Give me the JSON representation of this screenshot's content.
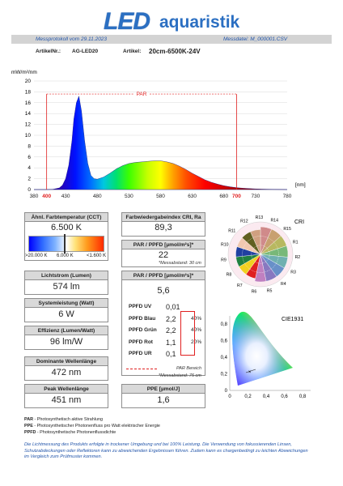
{
  "brand": {
    "led": "LED",
    "rest": "aquaristik"
  },
  "header": {
    "protocol": "Messprotokoll vom  29.11.2023",
    "datafile": "Messdatei:  M_000001.CSV"
  },
  "meta": {
    "article_no_label": "ArtikelNr.:",
    "article_no": "AG-LED20",
    "article_label": "Artikel:",
    "article": "20cm-6500K-24V"
  },
  "chart": {
    "yunit": "mW/m²/nm",
    "xunit": "[nm]",
    "par_label": "PAR",
    "par_start_label": "400",
    "par_end_label": "700"
  },
  "chart_data": {
    "type": "area",
    "title": "",
    "xlabel": "[nm]",
    "ylabel": "mW/m²/nm",
    "xlim": [
      380,
      780
    ],
    "ylim": [
      0,
      20
    ],
    "xticks": [
      380,
      400,
      430,
      480,
      530,
      580,
      630,
      680,
      700,
      730,
      780
    ],
    "yticks": [
      0,
      2,
      4,
      6,
      8,
      10,
      12,
      14,
      16,
      18,
      20
    ],
    "par_range": [
      400,
      700
    ],
    "series": [
      {
        "x": [
          380,
          400,
          410,
          420,
          425,
          430,
          435,
          440,
          443,
          447,
          451,
          455,
          460,
          465,
          470,
          475,
          480,
          490,
          500,
          510,
          520,
          530,
          540,
          550,
          560,
          570,
          580,
          590,
          600,
          610,
          620,
          630,
          640,
          650,
          660,
          670,
          680,
          690,
          700,
          710,
          720,
          730,
          740,
          750,
          760,
          780
        ],
        "y": [
          0,
          0,
          0.05,
          0.3,
          0.8,
          2.0,
          4.5,
          9.0,
          13.0,
          16.0,
          17.2,
          14.5,
          9.0,
          4.8,
          2.6,
          2.0,
          1.9,
          2.3,
          3.0,
          3.8,
          4.4,
          4.8,
          5.0,
          5.1,
          5.2,
          5.3,
          5.3,
          5.1,
          4.8,
          4.3,
          3.7,
          3.0,
          2.4,
          1.8,
          1.35,
          1.0,
          0.7,
          0.5,
          0.35,
          0.25,
          0.18,
          0.12,
          0.08,
          0.05,
          0.03,
          0.0
        ]
      }
    ]
  },
  "cct": {
    "label": "Ähnl. Farbtemperatur (CCT)",
    "value": "6.500 K",
    "scale_left": ">20.000 K",
    "scale_mid": "6.000 K",
    "scale_right": "<1.600 K"
  },
  "cri": {
    "label": "Farbwiedergabeindex CRI, Ra",
    "value": "89,3",
    "chart_title": "CRI",
    "labels": [
      "R1",
      "R2",
      "R3",
      "R4",
      "R5",
      "R6",
      "R7",
      "R8",
      "R9",
      "R10",
      "R11",
      "R12",
      "R13",
      "R14",
      "R15"
    ]
  },
  "par_ppfd_30": {
    "label": "PAR / PPFD [µmol/m²s]*",
    "value": "22",
    "note": "*Messabstand: 30 cm"
  },
  "lumen": {
    "label": "Lichtstrom (Lumen)",
    "value": "574 lm"
  },
  "power": {
    "label": "Systemleistung (Watt)",
    "value": "6 W"
  },
  "efficiency": {
    "label": "Effizienz (Lumen/Watt)",
    "value": "96 lm/W"
  },
  "par_ppfd_75": {
    "label": "PAR / PPFD [µmol/m²s]*",
    "value": "5,6",
    "rows": [
      {
        "name": "PPFD UV",
        "value": "0,01",
        "pct": ""
      },
      {
        "name": "PPFD Blau",
        "value": "2,2",
        "pct": "40%"
      },
      {
        "name": "PPFD Grün",
        "value": "2,2",
        "pct": "40%"
      },
      {
        "name": "PPFD Rot",
        "value": "1,1",
        "pct": "20%"
      },
      {
        "name": "PPFD UR",
        "value": "0,1",
        "pct": ""
      }
    ],
    "par_area": "PAR Bereich",
    "note": "*Messabstand: 75 cm"
  },
  "dominant": {
    "label": "Dominante Wellenlänge",
    "value": "472 nm"
  },
  "peak": {
    "label": "Peak Wellenlänge",
    "value": "451 nm"
  },
  "ppe": {
    "label": "PPE [µmol/J]",
    "value": "1,6"
  },
  "cie": {
    "title": "CIE1931",
    "yticks": [
      "0,8",
      "0,6",
      "0,4",
      "0,2",
      "0"
    ],
    "xticks": [
      "0",
      "0,2",
      "0,4",
      "0,6",
      "0,8"
    ]
  },
  "definitions": [
    {
      "key": "PAR",
      "text": " - Photosynthetisch aktive Strahlung"
    },
    {
      "key": "PPE",
      "text": " - Photosynthetischer Photonenfluss pro Watt elektrischer Energie"
    },
    {
      "key": "PPFD",
      "text": " - Photosynthetische Photonenflussdichte"
    }
  ],
  "disclaimer": "Die Lichtmessung des Produkts erfolgte  in trockener Umgebung und bei 100% Leistung. Die Verwendung von fokussierenden Linsen, Schutzabdeckungen oder Reflektoren kann zu abweichenden Ergebnissen führen. Zudem kann es chargenbedingt zu leichten Abweichungen im Vergleich zum Prüfmuster kommen.",
  "colors": {
    "accent": "#2255aa",
    "par_line": "#e02020",
    "panel_label_bg": "#d9d9d9",
    "brand": "#2b6fc2"
  }
}
